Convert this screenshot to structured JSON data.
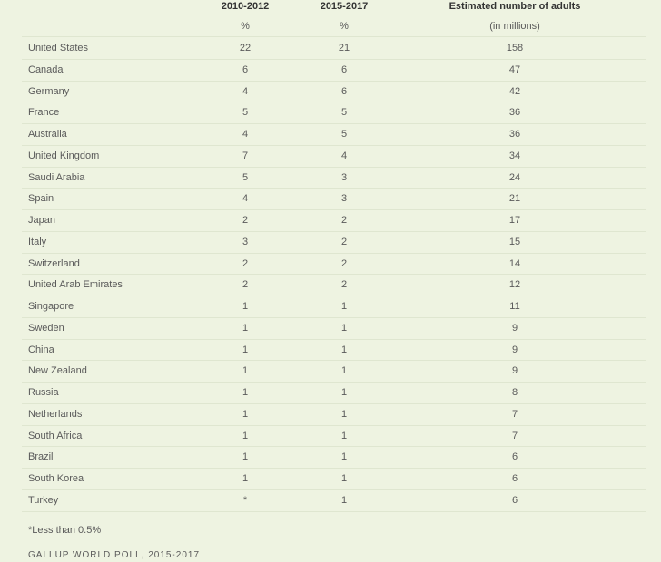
{
  "table": {
    "header": [
      "2010-2012",
      "2015-2017",
      "Estimated number of adults"
    ],
    "subheader": [
      "%",
      "%",
      "(in millions)"
    ],
    "rows": [
      [
        "United States",
        22,
        21,
        158
      ],
      [
        "Canada",
        6,
        6,
        47
      ],
      [
        "Germany",
        4,
        6,
        42
      ],
      [
        "France",
        5,
        5,
        36
      ],
      [
        "Australia",
        4,
        5,
        36
      ],
      [
        "United Kingdom",
        7,
        4,
        34
      ],
      [
        "Saudi Arabia",
        5,
        3,
        24
      ],
      [
        "Spain",
        4,
        3,
        21
      ],
      [
        "Japan",
        2,
        2,
        17
      ],
      [
        "Italy",
        3,
        2,
        15
      ],
      [
        "Switzerland",
        2,
        2,
        14
      ],
      [
        "United Arab Emirates",
        2,
        2,
        12
      ],
      [
        "Singapore",
        1,
        1,
        11
      ],
      [
        "Sweden",
        1,
        1,
        9
      ],
      [
        "China",
        1,
        1,
        9
      ],
      [
        "New Zealand",
        1,
        1,
        9
      ],
      [
        "Russia",
        1,
        1,
        8
      ],
      [
        "Netherlands",
        1,
        1,
        7
      ],
      [
        "South Africa",
        1,
        1,
        7
      ],
      [
        "Brazil",
        1,
        1,
        6
      ],
      [
        "South Korea",
        1,
        1,
        6
      ],
      [
        "Turkey",
        "*",
        1,
        6
      ]
    ],
    "footnote": "*Less than 0.5%",
    "source": "GALLUP WORLD POLL, 2015-2017"
  }
}
